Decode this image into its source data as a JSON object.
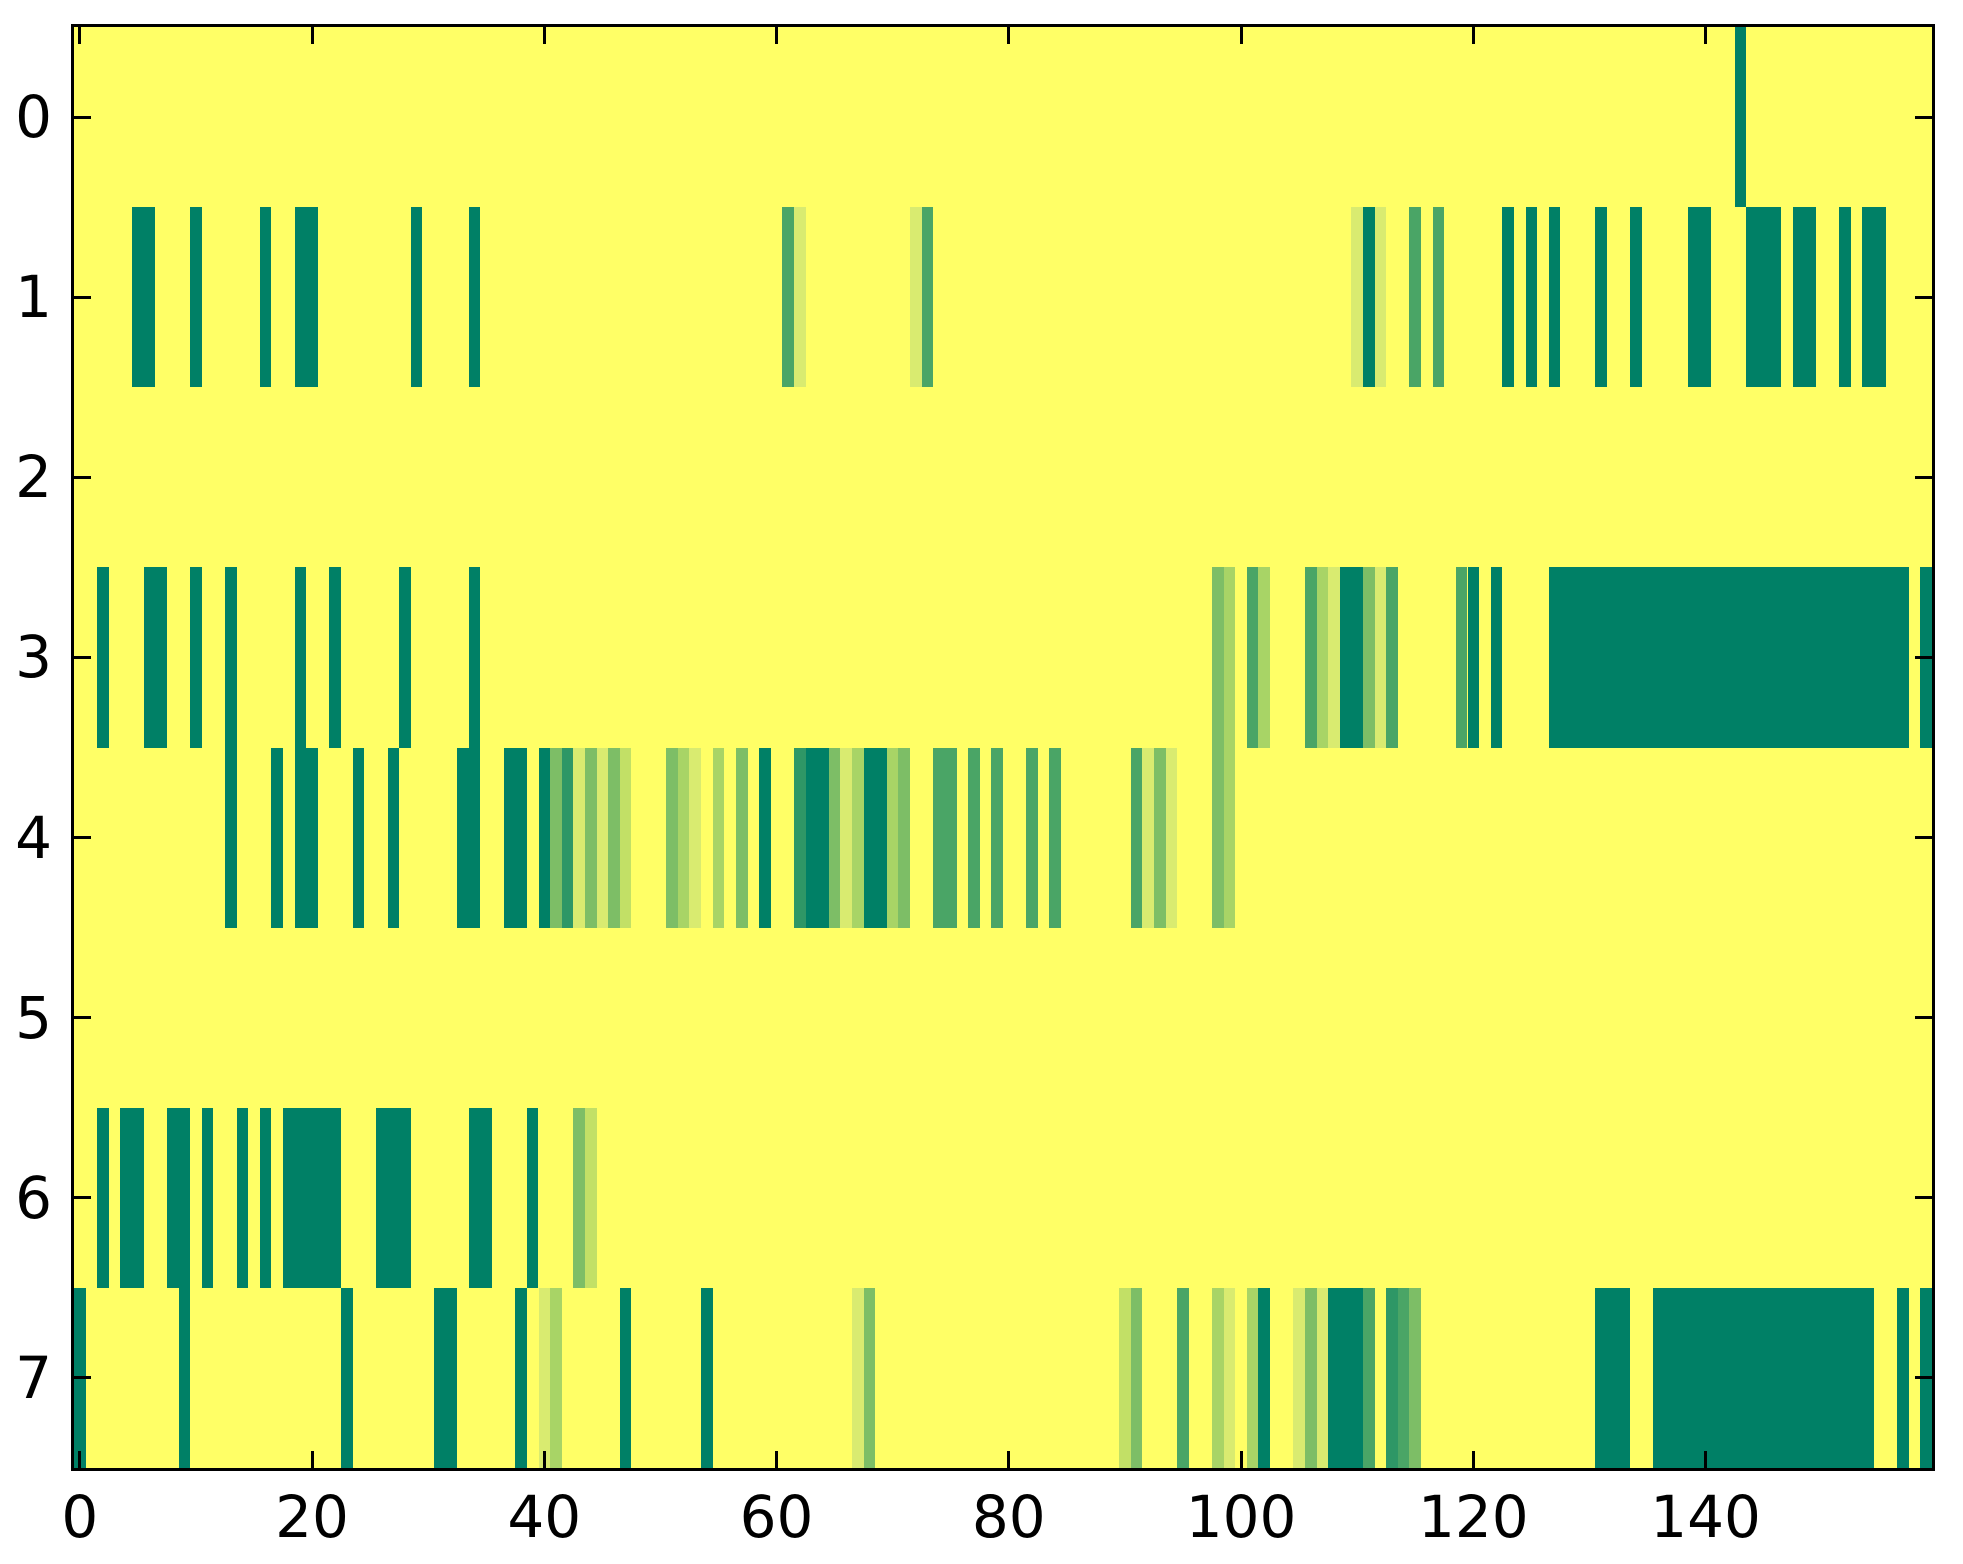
{
  "chart_data": {
    "type": "heatmap",
    "title": "",
    "xlabel": "",
    "ylabel": "",
    "n_rows": 8,
    "n_cols": 160,
    "xlim": [
      -0.5,
      159.5
    ],
    "ylim": [
      7.5,
      -0.5
    ],
    "x_tick_labels": [
      "0",
      "20",
      "40",
      "60",
      "80",
      "100",
      "120",
      "140"
    ],
    "x_tick_values": [
      0,
      20,
      40,
      60,
      80,
      100,
      120,
      140
    ],
    "y_tick_labels": [
      "0",
      "1",
      "2",
      "3",
      "4",
      "5",
      "6",
      "7"
    ],
    "y_tick_values": [
      0,
      1,
      2,
      3,
      4,
      5,
      6,
      7
    ],
    "grid": false,
    "legend": "none",
    "colormap": "summer",
    "colors": {
      "background_value": "#ffff66",
      "spine": "#000000",
      "tick": "#000000",
      "figure_background": "#ffffff"
    },
    "levels": {
      "d": "#008066",
      "md": "#2e9766",
      "m": "#4aa566",
      "lm": "#7dbe66",
      "l": "#a8d466",
      "pl": "#c2e066",
      "p": "#d9eb70"
    },
    "level_values": {
      "d": 0.0,
      "md": 0.18,
      "m": 0.3,
      "lm": 0.49,
      "l": 0.66,
      "pl": 0.76,
      "p": 0.85,
      "background": 1.0
    },
    "rows": [
      {
        "y": 0,
        "segments": [
          [
            143,
            144,
            "d"
          ]
        ]
      },
      {
        "y": 1,
        "segments": [
          [
            5,
            7,
            "d"
          ],
          [
            10,
            11,
            "d"
          ],
          [
            16,
            17,
            "d"
          ],
          [
            19,
            21,
            "d"
          ],
          [
            29,
            30,
            "d"
          ],
          [
            34,
            35,
            "d"
          ],
          [
            61,
            62,
            "m"
          ],
          [
            62,
            63,
            "p"
          ],
          [
            72,
            73,
            "p"
          ],
          [
            73,
            74,
            "m"
          ],
          [
            110,
            111,
            "p"
          ],
          [
            111,
            112,
            "d"
          ],
          [
            112,
            113,
            "p"
          ],
          [
            115,
            116,
            "m"
          ],
          [
            117,
            118,
            "m"
          ],
          [
            123,
            124,
            "d"
          ],
          [
            125,
            126,
            "d"
          ],
          [
            127,
            128,
            "d"
          ],
          [
            131,
            132,
            "d"
          ],
          [
            134,
            135,
            "d"
          ],
          [
            139,
            141,
            "d"
          ],
          [
            144,
            147,
            "d"
          ],
          [
            148,
            150,
            "d"
          ],
          [
            152,
            153,
            "d"
          ],
          [
            154,
            156,
            "d"
          ]
        ]
      },
      {
        "y": 2,
        "segments": []
      },
      {
        "y": 3,
        "segments": [
          [
            2,
            3,
            "d"
          ],
          [
            6,
            8,
            "d"
          ],
          [
            10,
            11,
            "d"
          ],
          [
            13,
            14,
            "d"
          ],
          [
            19,
            20,
            "d"
          ],
          [
            22,
            23,
            "d"
          ],
          [
            28,
            29,
            "d"
          ],
          [
            34,
            35,
            "d"
          ],
          [
            98,
            99,
            "lm"
          ],
          [
            99,
            100,
            "l"
          ],
          [
            101,
            102,
            "m"
          ],
          [
            102,
            103,
            "l"
          ],
          [
            106,
            107,
            "m"
          ],
          [
            107,
            108,
            "l"
          ],
          [
            108,
            109,
            "p"
          ],
          [
            109,
            111,
            "d"
          ],
          [
            111,
            112,
            "lm"
          ],
          [
            112,
            113,
            "p"
          ],
          [
            113,
            114,
            "m"
          ],
          [
            119,
            120,
            "m"
          ],
          [
            120,
            121,
            "d"
          ],
          [
            122,
            123,
            "d"
          ],
          [
            127,
            158,
            "d"
          ],
          [
            159,
            160,
            "d"
          ]
        ]
      },
      {
        "y": 4,
        "segments": [
          [
            13,
            14,
            "d"
          ],
          [
            17,
            18,
            "d"
          ],
          [
            19,
            21,
            "d"
          ],
          [
            24,
            25,
            "d"
          ],
          [
            27,
            28,
            "d"
          ],
          [
            33,
            35,
            "d"
          ],
          [
            37,
            39,
            "d"
          ],
          [
            40,
            41,
            "d"
          ],
          [
            41,
            42,
            "lm"
          ],
          [
            42,
            43,
            "md"
          ],
          [
            43,
            44,
            "p"
          ],
          [
            44,
            45,
            "lm"
          ],
          [
            45,
            46,
            "p"
          ],
          [
            46,
            47,
            "lm"
          ],
          [
            47,
            48,
            "pl"
          ],
          [
            51,
            52,
            "lm"
          ],
          [
            52,
            53,
            "l"
          ],
          [
            53,
            54,
            "p"
          ],
          [
            55,
            56,
            "l"
          ],
          [
            57,
            58,
            "lm"
          ],
          [
            59,
            60,
            "d"
          ],
          [
            62,
            63,
            "md"
          ],
          [
            63,
            65,
            "d"
          ],
          [
            65,
            66,
            "lm"
          ],
          [
            66,
            67,
            "p"
          ],
          [
            67,
            68,
            "l"
          ],
          [
            68,
            70,
            "d"
          ],
          [
            70,
            71,
            "l"
          ],
          [
            71,
            72,
            "lm"
          ],
          [
            74,
            76,
            "m"
          ],
          [
            77,
            78,
            "m"
          ],
          [
            79,
            80,
            "m"
          ],
          [
            82,
            83,
            "m"
          ],
          [
            84,
            85,
            "m"
          ],
          [
            91,
            92,
            "m"
          ],
          [
            92,
            93,
            "p"
          ],
          [
            93,
            94,
            "lm"
          ],
          [
            94,
            95,
            "p"
          ],
          [
            98,
            99,
            "lm"
          ],
          [
            99,
            100,
            "l"
          ]
        ]
      },
      {
        "y": 5,
        "segments": []
      },
      {
        "y": 6,
        "segments": [
          [
            2,
            3,
            "d"
          ],
          [
            4,
            6,
            "d"
          ],
          [
            8,
            10,
            "d"
          ],
          [
            11,
            12,
            "d"
          ],
          [
            14,
            15,
            "d"
          ],
          [
            16,
            17,
            "d"
          ],
          [
            18,
            23,
            "d"
          ],
          [
            26,
            29,
            "d"
          ],
          [
            34,
            36,
            "d"
          ],
          [
            39,
            40,
            "d"
          ],
          [
            43,
            44,
            "lm"
          ],
          [
            44,
            45,
            "pl"
          ]
        ]
      },
      {
        "y": 7,
        "segments": [
          [
            0,
            1,
            "d"
          ],
          [
            9,
            10,
            "d"
          ],
          [
            23,
            24,
            "d"
          ],
          [
            31,
            33,
            "d"
          ],
          [
            38,
            39,
            "d"
          ],
          [
            40,
            41,
            "p"
          ],
          [
            41,
            42,
            "l"
          ],
          [
            47,
            48,
            "d"
          ],
          [
            54,
            55,
            "d"
          ],
          [
            67,
            68,
            "p"
          ],
          [
            68,
            69,
            "lm"
          ],
          [
            90,
            91,
            "pl"
          ],
          [
            91,
            92,
            "lm"
          ],
          [
            95,
            96,
            "m"
          ],
          [
            98,
            99,
            "l"
          ],
          [
            99,
            100,
            "p"
          ],
          [
            101,
            102,
            "l"
          ],
          [
            102,
            103,
            "d"
          ],
          [
            105,
            106,
            "p"
          ],
          [
            106,
            107,
            "lm"
          ],
          [
            107,
            108,
            "p"
          ],
          [
            108,
            111,
            "d"
          ],
          [
            111,
            112,
            "m"
          ],
          [
            113,
            114,
            "md"
          ],
          [
            114,
            115,
            "m"
          ],
          [
            115,
            116,
            "lm"
          ],
          [
            131,
            134,
            "d"
          ],
          [
            136,
            155,
            "d"
          ],
          [
            157,
            158,
            "d"
          ],
          [
            159,
            160,
            "d"
          ]
        ]
      }
    ]
  }
}
